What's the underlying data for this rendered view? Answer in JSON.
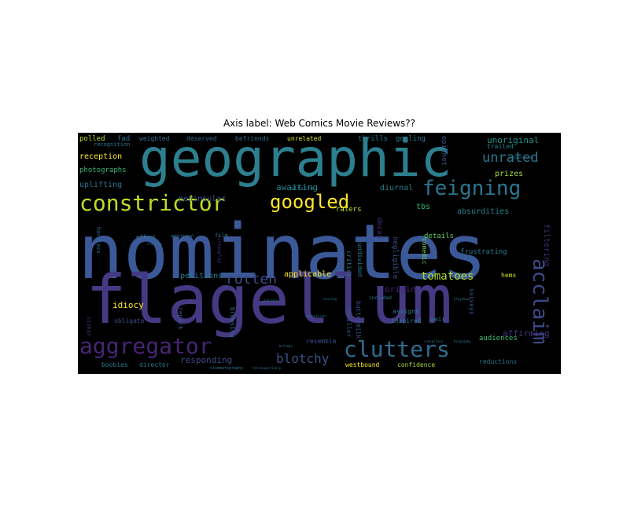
{
  "chart_data": {
    "type": "wordcloud",
    "title": "Axis label: Web Comics Movie Reviews??",
    "background": "#000000",
    "palette": [
      "#440154",
      "#3b528b",
      "#21918c",
      "#5ec962",
      "#fde725"
    ],
    "words": [
      {
        "text": "nominates",
        "weight": 100,
        "color": "#3b5998"
      },
      {
        "text": "flagellum",
        "weight": 93,
        "color": "#443a83"
      },
      {
        "text": "geographic",
        "weight": 78,
        "color": "#2c7f8e"
      },
      {
        "text": "aggregator",
        "weight": 36,
        "color": "#482475"
      },
      {
        "text": "constrictor",
        "weight": 38,
        "color": "#bddf26"
      },
      {
        "text": "clutters",
        "weight": 36,
        "color": "#2f6c8e"
      },
      {
        "text": "feigning",
        "weight": 32,
        "color": "#2a768e"
      },
      {
        "text": "acclaim",
        "weight": 32,
        "color": "#3e4a89"
      },
      {
        "text": "googled",
        "weight": 30,
        "color": "#fde725"
      },
      {
        "text": "rotten",
        "weight": 20,
        "color": "#3e4a89"
      },
      {
        "text": "unrated",
        "weight": 20,
        "color": "#2a788e"
      },
      {
        "text": "blotchy",
        "weight": 18,
        "color": "#3b528b"
      },
      {
        "text": "tomatoes",
        "weight": 17,
        "color": "#addc30"
      },
      {
        "text": "unoriginal",
        "weight": 12,
        "color": "#21918c"
      },
      {
        "text": "peninsular",
        "weight": 12,
        "color": "#3b528b"
      },
      {
        "text": "awaiting",
        "weight": 12,
        "color": "#25858e"
      },
      {
        "text": "responding",
        "weight": 12,
        "color": "#3e4a89"
      },
      {
        "text": "affirming",
        "weight": 12,
        "color": "#46337f"
      },
      {
        "text": "reception",
        "weight": 11,
        "color": "#fde725"
      },
      {
        "text": "uplifting",
        "weight": 11,
        "color": "#2c728e"
      },
      {
        "text": "prizes",
        "weight": 11,
        "color": "#a2da37"
      },
      {
        "text": "diurnal",
        "weight": 11,
        "color": "#287c8e"
      },
      {
        "text": "idiocy",
        "weight": 11,
        "color": "#fde725"
      },
      {
        "text": "applicable",
        "weight": 11,
        "color": "#fde725"
      },
      {
        "text": "tbs",
        "weight": 11,
        "color": "#32b67a"
      },
      {
        "text": "filtering",
        "weight": 11,
        "color": "#472d7b"
      },
      {
        "text": "absurdities",
        "weight": 10,
        "color": "#26828e"
      },
      {
        "text": "petitions",
        "weight": 10,
        "color": "#2a788e"
      },
      {
        "text": "origin",
        "weight": 11,
        "color": "#482374"
      },
      {
        "text": "polled",
        "weight": 10,
        "color": "#bddf26"
      },
      {
        "text": "fad",
        "weight": 10,
        "color": "#2c728e"
      },
      {
        "text": "photographs",
        "weight": 9,
        "color": "#35b779"
      },
      {
        "text": "raters",
        "weight": 9,
        "color": "#c2df23"
      },
      {
        "text": "decay",
        "weight": 9,
        "color": "#472c7a"
      },
      {
        "text": "epithet",
        "weight": 9,
        "color": "#3a548c"
      },
      {
        "text": "gosling",
        "weight": 9,
        "color": "#2a788e"
      },
      {
        "text": "thrills",
        "weight": 9,
        "color": "#2a788e"
      },
      {
        "text": "weighted",
        "weight": 9,
        "color": "#2e6f8e"
      },
      {
        "text": "deserved",
        "weight": 9,
        "color": "#31688e"
      },
      {
        "text": "befriends",
        "weight": 9,
        "color": "#31688e"
      },
      {
        "text": "unrelated",
        "weight": 9,
        "color": "#d8e219"
      },
      {
        "text": "trailed",
        "weight": 8,
        "color": "#25838e"
      },
      {
        "text": "details",
        "weight": 9,
        "color": "#65cb5e"
      },
      {
        "text": "frustrating",
        "weight": 9,
        "color": "#2a788e"
      },
      {
        "text": "comedic",
        "weight": 8,
        "color": "#6ccd5a"
      },
      {
        "text": "negligible",
        "weight": 9,
        "color": "#3b528b"
      },
      {
        "text": "undivided",
        "weight": 8,
        "color": "#2a788e"
      },
      {
        "text": "critics",
        "weight": 8,
        "color": "#2a788e"
      },
      {
        "text": "surveys",
        "weight": 8,
        "color": "#3b528b"
      },
      {
        "text": "hems",
        "weight": 8,
        "color": "#d0e11c"
      },
      {
        "text": "audiences",
        "weight": 9,
        "color": "#3fbc73"
      },
      {
        "text": "reductions",
        "weight": 8,
        "color": "#2a788e"
      },
      {
        "text": "confidence",
        "weight": 8,
        "color": "#a8db34"
      },
      {
        "text": "westbound",
        "weight": 8,
        "color": "#fde725"
      },
      {
        "text": "resemble",
        "weight": 8,
        "color": "#3b528b"
      },
      {
        "text": "buttermilk",
        "weight": 8,
        "color": "#3b528b"
      },
      {
        "text": "thriller",
        "weight": 8,
        "color": "#3b528b"
      },
      {
        "text": "assigns",
        "weight": 8,
        "color": "#2a788e"
      },
      {
        "text": "inspired",
        "weight": 8,
        "color": "#2a788e"
      },
      {
        "text": "weir",
        "weight": 8,
        "color": "#2a788e"
      },
      {
        "text": "included",
        "weight": 6,
        "color": "#2a788e"
      },
      {
        "text": "browsing",
        "weight": 8,
        "color": "#31688e"
      },
      {
        "text": "obligate",
        "weight": 8,
        "color": "#3b528b"
      },
      {
        "text": "repack",
        "weight": 8,
        "color": "#3b528b"
      },
      {
        "text": "boobies",
        "weight": 8,
        "color": "#2a788e"
      },
      {
        "text": "director",
        "weight": 8,
        "color": "#2a788e"
      },
      {
        "text": "stokar",
        "weight": 7,
        "color": "#472c7a"
      },
      {
        "text": "harmless",
        "weight": 7,
        "color": "#31688e"
      },
      {
        "text": "effort",
        "weight": 7,
        "color": "#2a788e"
      },
      {
        "text": "recognition",
        "weight": 7,
        "color": "#2a788e"
      },
      {
        "text": "offsite",
        "weight": 7,
        "color": "#2a788e"
      },
      {
        "text": "film",
        "weight": 7,
        "color": "#2a788e"
      },
      {
        "text": "screenplay",
        "weight": 6,
        "color": "#472c7a"
      },
      {
        "text": "additional",
        "weight": 5,
        "color": "#2a788e"
      },
      {
        "text": "cinematography",
        "weight": 5,
        "color": "#2a788e"
      },
      {
        "text": "neighborhood",
        "weight": 4,
        "color": "#2a788e"
      },
      {
        "text": "retrospectively",
        "weight": 4,
        "color": "#2a788e"
      },
      {
        "text": "generalists",
        "weight": 4,
        "color": "#2a788e"
      },
      {
        "text": "sleepers",
        "weight": 4,
        "color": "#2a788e"
      },
      {
        "text": "everyone",
        "weight": 4,
        "color": "#2a788e"
      },
      {
        "text": "playhouse",
        "weight": 4,
        "color": "#2a788e"
      },
      {
        "text": "biography",
        "weight": 4,
        "color": "#2a788e"
      },
      {
        "text": "conspiracy",
        "weight": 4,
        "color": "#2a788e"
      },
      {
        "text": "voicing",
        "weight": 4,
        "color": "#2a788e"
      },
      {
        "text": "belongs",
        "weight": 4,
        "color": "#2a788e"
      }
    ]
  }
}
